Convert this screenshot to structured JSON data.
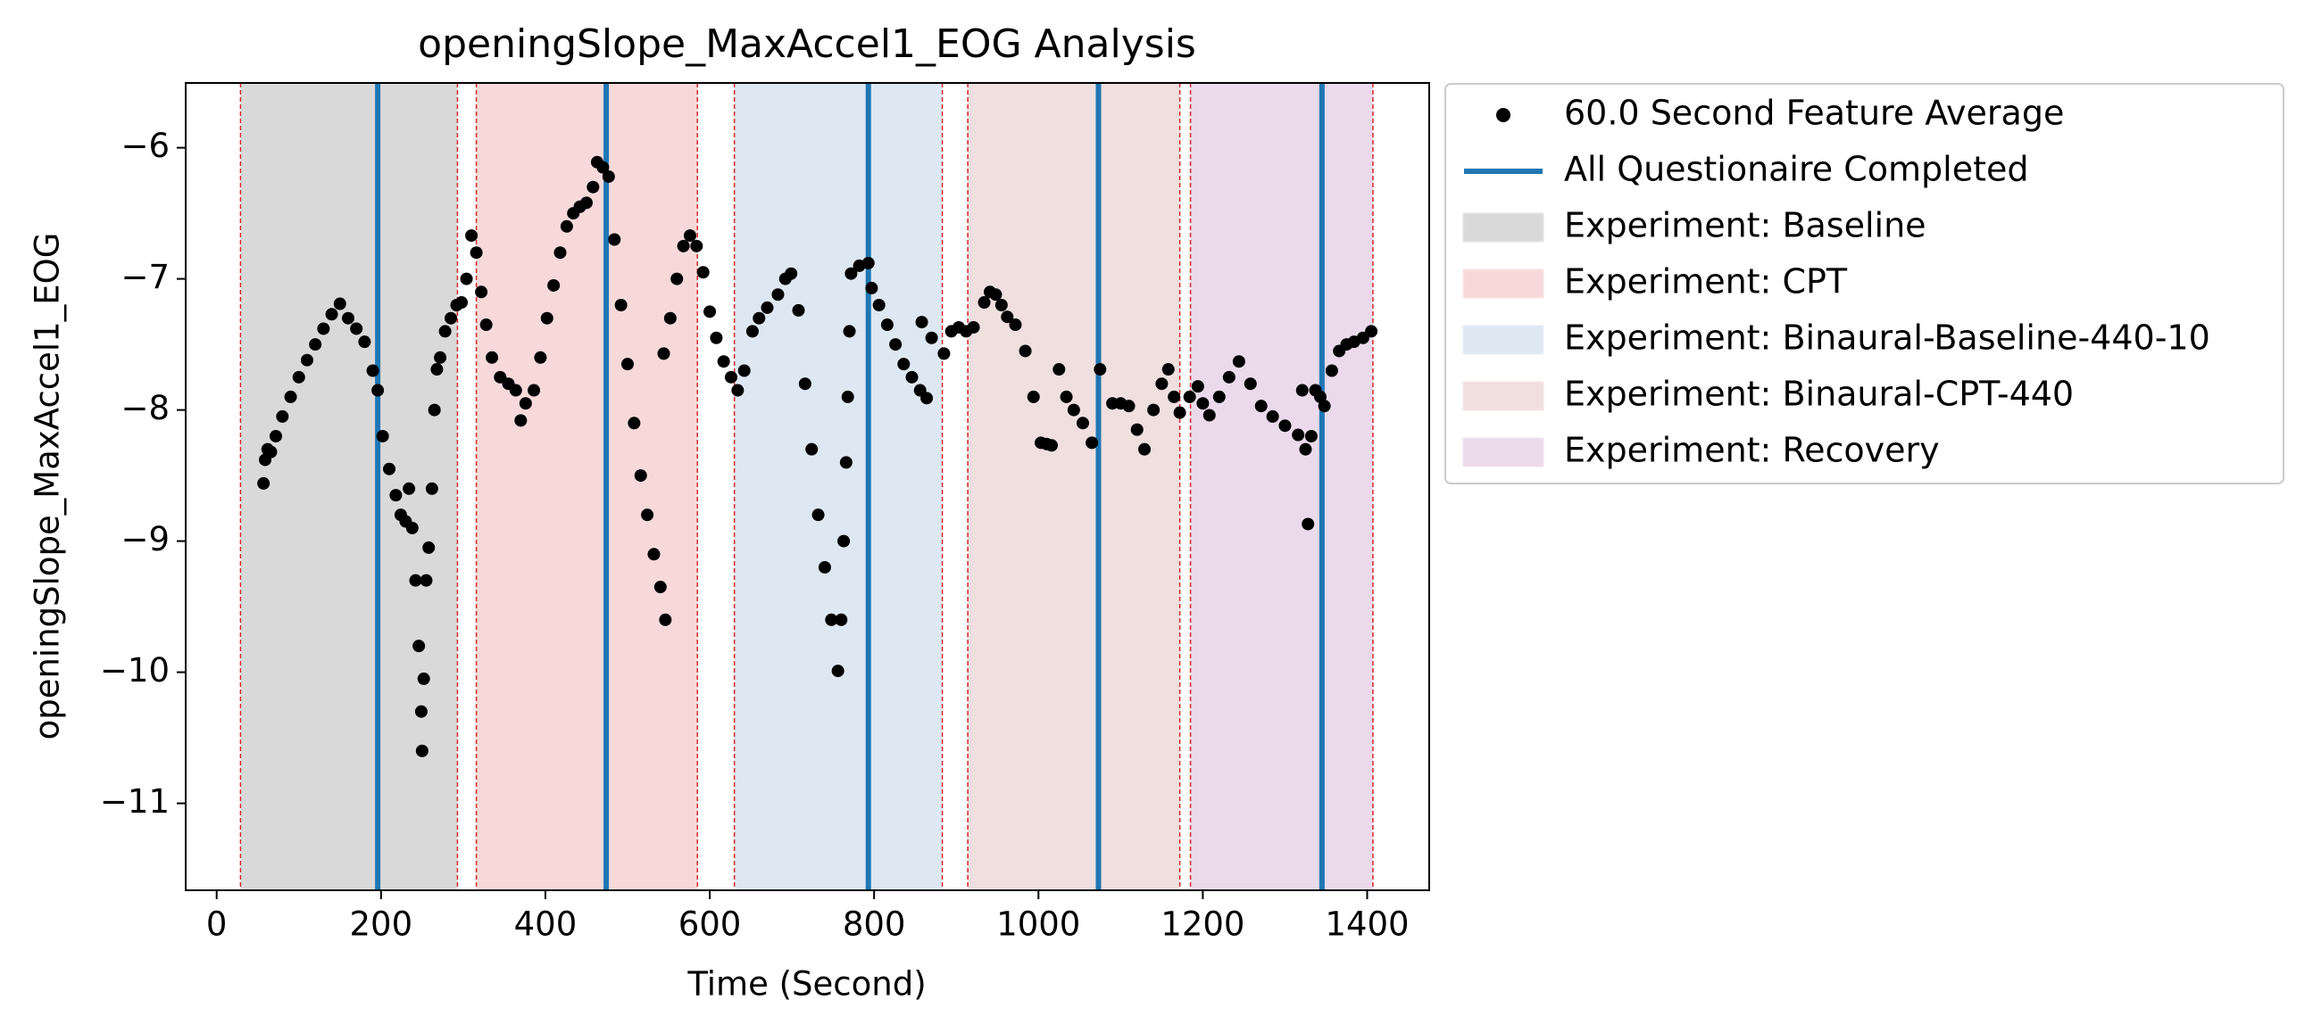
{
  "chart_data": {
    "type": "scatter",
    "title": "openingSlope_MaxAccel1_EOG Analysis",
    "x_label": "Time (Second)",
    "y_label": "openingSlope_MaxAccel1_EOG",
    "xlim": [
      -37.7,
      1475.5
    ],
    "ylim": [
      -11.663,
      -5.506
    ],
    "xticks": [
      0,
      200,
      400,
      600,
      800,
      1000,
      1200,
      1400
    ],
    "yticks": [
      {
        "value": -6,
        "label": "−6"
      },
      {
        "value": -7,
        "label": "−7"
      },
      {
        "value": -8,
        "label": "−8"
      },
      {
        "value": -9,
        "label": "−9"
      },
      {
        "value": -10,
        "label": "−10"
      },
      {
        "value": -11,
        "label": "−11"
      }
    ],
    "regions": [
      {
        "name": "Experiment: Baseline",
        "color": "#d9d9d9",
        "x0": 29,
        "x1": 293
      },
      {
        "name": "Experiment: CPT",
        "color": "#f7d9d9",
        "x0": 316,
        "x1": 585
      },
      {
        "name": "Experiment: Binaural-Baseline-440-10",
        "color": "#dde8f2",
        "x0": 630,
        "x1": 883
      },
      {
        "name": "Experiment: Binaural-CPT-440",
        "color": "#efdfdf",
        "x0": 914,
        "x1": 1172
      },
      {
        "name": "Experiment: Recovery",
        "color": "#ebdaec",
        "x0": 1185,
        "x1": 1407
      }
    ],
    "vlines": {
      "name": "All Questionaire Completed",
      "color": "#1f77b4",
      "values": [
        196,
        474,
        793,
        1073,
        1345
      ]
    },
    "x": [
      57,
      59,
      62,
      66,
      72,
      80,
      90,
      100,
      110,
      120,
      130,
      140,
      150,
      160,
      170,
      180,
      190,
      196,
      202,
      210,
      218,
      224,
      230,
      234,
      238,
      242,
      246,
      249,
      250,
      252,
      255,
      258,
      262,
      265,
      268,
      272,
      278,
      285,
      292,
      298,
      304,
      310,
      316,
      322,
      328,
      335,
      345,
      355,
      364,
      370,
      376,
      386,
      394,
      402,
      410,
      418,
      426,
      434,
      442,
      450,
      458,
      463,
      470,
      477,
      484,
      492,
      500,
      508,
      516,
      524,
      532,
      540,
      546,
      544,
      552,
      560,
      568,
      576,
      584,
      592,
      600,
      608,
      617,
      626,
      634,
      642,
      652,
      660,
      670,
      683,
      692,
      699,
      708,
      716,
      724,
      732,
      740,
      748,
      756,
      760,
      763,
      766,
      768,
      770,
      772,
      782,
      793,
      797,
      806,
      816,
      826,
      836,
      846,
      856,
      864,
      858,
      870,
      885,
      894,
      903,
      912,
      921,
      934,
      941,
      948,
      955,
      962,
      972,
      984,
      994,
      1003,
      1010,
      1016,
      1025,
      1034,
      1043,
      1054,
      1065,
      1075,
      1090,
      1100,
      1110,
      1120,
      1129,
      1140,
      1150,
      1158,
      1165,
      1172,
      1184,
      1194,
      1200,
      1208,
      1220,
      1232,
      1244,
      1258,
      1271,
      1285,
      1300,
      1316,
      1321,
      1325,
      1328,
      1332,
      1337,
      1343,
      1348,
      1357,
      1366,
      1375,
      1384,
      1395,
      1405
    ],
    "series": [
      {
        "name": "60.0 Second Feature Average",
        "color": "#000000",
        "values": [
          -8.56,
          -8.38,
          -8.3,
          -8.32,
          -8.2,
          -8.05,
          -7.9,
          -7.75,
          -7.62,
          -7.5,
          -7.38,
          -7.27,
          -7.19,
          -7.3,
          -7.38,
          -7.48,
          -7.7,
          -7.85,
          -8.2,
          -8.45,
          -8.65,
          -8.8,
          -8.85,
          -8.6,
          -8.9,
          -9.3,
          -9.8,
          -10.3,
          -10.6,
          -10.05,
          -9.3,
          -9.05,
          -8.6,
          -8.0,
          -7.69,
          -7.6,
          -7.4,
          -7.3,
          -7.2,
          -7.18,
          -7.0,
          -6.67,
          -6.8,
          -7.1,
          -7.35,
          -7.6,
          -7.75,
          -7.8,
          -7.85,
          -8.08,
          -7.95,
          -7.85,
          -7.6,
          -7.3,
          -7.05,
          -6.8,
          -6.6,
          -6.5,
          -6.45,
          -6.42,
          -6.3,
          -6.11,
          -6.15,
          -6.22,
          -6.7,
          -7.2,
          -7.65,
          -8.1,
          -8.5,
          -8.8,
          -9.1,
          -9.35,
          -9.6,
          -7.57,
          -7.3,
          -7.0,
          -6.75,
          -6.67,
          -6.75,
          -6.95,
          -7.25,
          -7.45,
          -7.63,
          -7.75,
          -7.85,
          -7.7,
          -7.4,
          -7.3,
          -7.22,
          -7.12,
          -7.0,
          -6.96,
          -7.24,
          -7.8,
          -8.3,
          -8.8,
          -9.2,
          -9.6,
          -9.99,
          -9.6,
          -9.0,
          -8.4,
          -7.9,
          -7.4,
          -6.96,
          -6.9,
          -6.88,
          -7.07,
          -7.2,
          -7.35,
          -7.5,
          -7.65,
          -7.75,
          -7.85,
          -7.91,
          -7.33,
          -7.45,
          -7.57,
          -7.4,
          -7.37,
          -7.4,
          -7.37,
          -7.18,
          -7.1,
          -7.12,
          -7.2,
          -7.29,
          -7.35,
          -7.55,
          -7.9,
          -8.25,
          -8.26,
          -8.27,
          -7.69,
          -7.9,
          -8.0,
          -8.1,
          -8.25,
          -7.69,
          -7.95,
          -7.95,
          -7.97,
          -8.15,
          -8.3,
          -8.0,
          -7.8,
          -7.69,
          -7.9,
          -8.02,
          -7.9,
          -7.82,
          -7.95,
          -8.04,
          -7.9,
          -7.75,
          -7.63,
          -7.8,
          -7.97,
          -8.05,
          -8.12,
          -8.19,
          -7.85,
          -8.3,
          -8.87,
          -8.2,
          -7.85,
          -7.9,
          -7.97,
          -7.7,
          -7.55,
          -7.5,
          -7.48,
          -7.45,
          -7.4
        ]
      }
    ]
  }
}
